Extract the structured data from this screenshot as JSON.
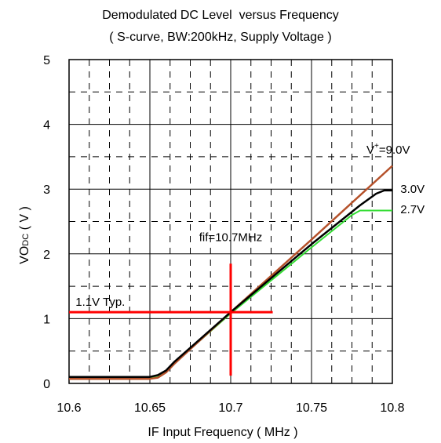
{
  "chart_data": {
    "type": "line",
    "title": "Demodulated DC Level  versus Frequency",
    "subtitle": "( S-curve, BW:200kHz, Supply Voltage )",
    "xlabel": "IF Input Frequency ( MHz )",
    "ylabel": {
      "main": "VO",
      "sub": "DC",
      "unit": " ( V )"
    },
    "xlim": [
      10.6,
      10.8
    ],
    "ylim": [
      0,
      5
    ],
    "xticks": [
      "10.6",
      "10.65",
      "10.7",
      "10.75",
      "10.8"
    ],
    "yticks": [
      "0",
      "1",
      "2",
      "3",
      "4",
      "5"
    ],
    "grid": true,
    "series": [
      {
        "name": "V+=9.0V",
        "color": "#b5512a",
        "x": [
          10.6,
          10.65,
          10.655,
          10.66,
          10.665,
          10.7,
          10.75,
          10.8
        ],
        "y": [
          0.07,
          0.07,
          0.09,
          0.17,
          0.3,
          1.1,
          2.22,
          3.36
        ]
      },
      {
        "name": "3.0V",
        "color": "#000000",
        "x": [
          10.6,
          10.65,
          10.655,
          10.66,
          10.665,
          10.7,
          10.75,
          10.77,
          10.78,
          10.79,
          10.795,
          10.8
        ],
        "y": [
          0.1,
          0.1,
          0.13,
          0.2,
          0.33,
          1.1,
          2.15,
          2.55,
          2.75,
          2.93,
          2.98,
          2.98
        ]
      },
      {
        "name": "2.7V",
        "color": "#33dd33",
        "x": [
          10.6,
          10.65,
          10.655,
          10.66,
          10.665,
          10.7,
          10.75,
          10.76,
          10.77,
          10.775,
          10.78,
          10.8
        ],
        "y": [
          0.09,
          0.09,
          0.12,
          0.19,
          0.31,
          1.08,
          2.1,
          2.3,
          2.5,
          2.6,
          2.67,
          2.67
        ]
      }
    ],
    "annotations": {
      "fif": {
        "text": "fif=10.7MHz",
        "x": 10.7
      },
      "typ": {
        "text": "1.1V Typ.",
        "y": 1.1
      },
      "color": "#ff0000",
      "v_main": "V",
      "v_sup": "+",
      "v_rest": "=9.0V"
    }
  }
}
